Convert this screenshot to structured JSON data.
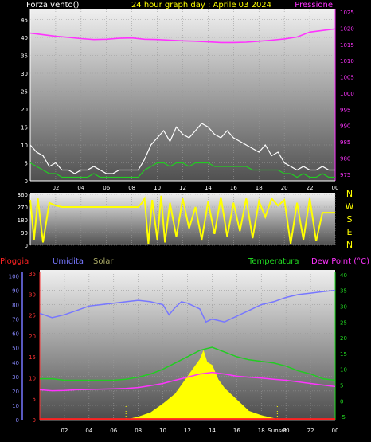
{
  "header": {
    "left": "Forza vento()",
    "center": "24 hour graph day : Aprile 03 2024",
    "right": "Pressione"
  },
  "legend2": {
    "pioggia": "Pioggia",
    "umidita": "Umidita",
    "solar": "Solar",
    "temperatura": "Temperatura",
    "dewpoint": "Dew Point (°C)"
  },
  "wind_dir_letters": [
    "N",
    "W",
    "S",
    "E",
    "N"
  ],
  "sunset_label": "Sunset",
  "colors": {
    "wind_avg": "#22cc22",
    "wind_gust": "#ffffff",
    "pressure": "#ff33ff",
    "direction": "#ffff00",
    "rain": "#ff2222",
    "humidity": "#7777ff",
    "solar": "#ffff00",
    "temperature": "#22cc22",
    "dewpoint": "#ff33ff"
  },
  "chart_data": [
    {
      "type": "line",
      "name": "wind-pressure",
      "x_ticks": [
        "02",
        "04",
        "06",
        "08",
        "10",
        "12",
        "14",
        "16",
        "18",
        "20",
        "22",
        "00"
      ],
      "y_left_ticks": [
        0,
        5,
        10,
        15,
        20,
        25,
        30,
        35,
        40,
        45
      ],
      "y_right_ticks": [
        975,
        980,
        985,
        990,
        995,
        1000,
        1005,
        1010,
        1015,
        1020,
        1025
      ],
      "ylim_left": [
        0,
        48
      ],
      "ylim_right": [
        973,
        1026
      ],
      "series": [
        {
          "key": "pressure",
          "axis": "right",
          "x": [
            0,
            1,
            2,
            3,
            4,
            5,
            6,
            7,
            8,
            9,
            10,
            11,
            12,
            13,
            14,
            15,
            16,
            17,
            18,
            19,
            20,
            21,
            22,
            23,
            24
          ],
          "values": [
            1018.5,
            1018,
            1017.5,
            1017.2,
            1016.8,
            1016.5,
            1016.6,
            1016.9,
            1017,
            1016.6,
            1016.5,
            1016.3,
            1016.1,
            1016,
            1015.8,
            1015.6,
            1015.6,
            1015.7,
            1016,
            1016.3,
            1016.7,
            1017.3,
            1018.8,
            1019.3,
            1019.8
          ]
        },
        {
          "key": "wind_gust",
          "axis": "left",
          "x": [
            0,
            0.5,
            1,
            1.5,
            2,
            2.5,
            3,
            3.5,
            4,
            4.5,
            5,
            5.5,
            6,
            6.5,
            7,
            7.5,
            8,
            8.5,
            9,
            9.5,
            10,
            10.5,
            11,
            11.5,
            12,
            12.5,
            13,
            13.5,
            14,
            14.5,
            15,
            15.5,
            16,
            16.5,
            17,
            17.5,
            18,
            18.5,
            19,
            19.5,
            20,
            20.5,
            21,
            21.5,
            22,
            22.5,
            23,
            23.5,
            24
          ],
          "values": [
            10,
            8,
            7,
            4,
            5,
            3,
            3,
            2,
            3,
            3,
            4,
            3,
            2,
            2,
            3,
            3,
            3,
            3,
            6,
            10,
            12,
            14,
            11,
            15,
            13,
            12,
            14,
            16,
            15,
            13,
            12,
            14,
            12,
            11,
            10,
            9,
            8,
            10,
            7,
            8,
            5,
            4,
            3,
            4,
            3,
            3,
            4,
            3,
            3
          ]
        },
        {
          "key": "wind_avg",
          "axis": "left",
          "x": [
            0,
            0.5,
            1,
            1.5,
            2,
            2.5,
            3,
            3.5,
            4,
            4.5,
            5,
            5.5,
            6,
            6.5,
            7,
            7.5,
            8,
            8.5,
            9,
            9.5,
            10,
            10.5,
            11,
            11.5,
            12,
            12.5,
            13,
            13.5,
            14,
            14.5,
            15,
            15.5,
            16,
            16.5,
            17,
            17.5,
            18,
            18.5,
            19,
            19.5,
            20,
            20.5,
            21,
            21.5,
            22,
            22.5,
            23,
            23.5,
            24
          ],
          "values": [
            5,
            4,
            3,
            2,
            2,
            1,
            1,
            1,
            1,
            1,
            2,
            1,
            1,
            1,
            1,
            1,
            1,
            1,
            3,
            4,
            5,
            5,
            4,
            5,
            5,
            4,
            5,
            5,
            5,
            4,
            4,
            4,
            4,
            4,
            4,
            3,
            3,
            3,
            3,
            3,
            2,
            2,
            1,
            2,
            1,
            1,
            2,
            1,
            1
          ]
        }
      ]
    },
    {
      "type": "line",
      "name": "wind-direction",
      "y_ticks": [
        0,
        90,
        180,
        270,
        360
      ],
      "ylim": [
        0,
        360
      ],
      "series": [
        {
          "key": "direction",
          "x": [
            0,
            0.3,
            0.6,
            1,
            1.5,
            2,
            2.5,
            3,
            3.5,
            4,
            4.5,
            5,
            5.5,
            6,
            6.5,
            7,
            7.5,
            8,
            8.5,
            8.8,
            9,
            9.3,
            9.6,
            10,
            10.3,
            10.6,
            11,
            11.5,
            12,
            12.5,
            13,
            13.5,
            14,
            14.5,
            15,
            15.5,
            16,
            16.5,
            17,
            17.5,
            18,
            18.5,
            19,
            19.5,
            20,
            20.5,
            21,
            21.5,
            22,
            22.5,
            23,
            23.5,
            24
          ],
          "values": [
            320,
            40,
            330,
            20,
            300,
            280,
            270,
            270,
            270,
            270,
            270,
            270,
            270,
            270,
            270,
            270,
            270,
            270,
            270,
            300,
            330,
            10,
            320,
            40,
            350,
            20,
            300,
            60,
            330,
            120,
            270,
            40,
            310,
            80,
            340,
            60,
            300,
            100,
            330,
            50,
            310,
            200,
            330,
            280,
            320,
            10,
            300,
            40,
            330,
            30,
            230,
            230,
            230
          ]
        }
      ]
    },
    {
      "type": "line",
      "name": "rain-humidity-solar-temp-dew",
      "x_ticks": [
        "02",
        "04",
        "06",
        "08",
        "10",
        "12",
        "14",
        "16",
        "18",
        "20",
        "22",
        "00"
      ],
      "y_left_ticks": [
        0,
        10,
        20,
        30,
        40,
        50,
        60,
        70,
        80,
        90,
        100
      ],
      "y_rain_ticks": [
        0,
        5,
        10,
        15,
        20,
        25,
        30,
        35
      ],
      "y_right_ticks": [
        -5,
        0,
        5,
        10,
        15,
        20,
        25,
        30,
        35,
        40
      ],
      "ylim_left": [
        0,
        103
      ],
      "ylim_right": [
        -6,
        41
      ],
      "series": [
        {
          "key": "humidity",
          "axis": "left",
          "x": [
            0,
            1,
            2,
            3,
            4,
            5,
            6,
            7,
            8,
            9,
            10,
            10.5,
            11,
            11.5,
            12,
            13,
            13.5,
            14,
            15,
            16,
            17,
            18,
            19,
            20,
            21,
            22,
            23,
            24
          ],
          "values": [
            74,
            71,
            73,
            76,
            79,
            80,
            81,
            82,
            83,
            82,
            80,
            73,
            78,
            82,
            81,
            77,
            68,
            70,
            68,
            72,
            76,
            80,
            82,
            85,
            87,
            88,
            89,
            90
          ]
        },
        {
          "key": "temperature",
          "axis": "right",
          "x": [
            0,
            1,
            2,
            3,
            4,
            5,
            6,
            7,
            8,
            9,
            10,
            11,
            12,
            13,
            14,
            15,
            16,
            17,
            18,
            19,
            20,
            21,
            22,
            23,
            24
          ],
          "values": [
            7,
            7,
            6.5,
            6.5,
            6.5,
            6.5,
            6.5,
            6.8,
            7.5,
            8.5,
            10,
            12,
            14,
            16,
            17,
            15.5,
            14,
            13,
            12.5,
            12,
            11,
            9.5,
            8.5,
            7,
            6.5
          ]
        },
        {
          "key": "dewpoint",
          "axis": "right",
          "x": [
            0,
            1,
            2,
            3,
            4,
            5,
            6,
            7,
            8,
            9,
            10,
            11,
            12,
            13,
            14,
            15,
            16,
            17,
            18,
            19,
            20,
            21,
            22,
            23,
            24
          ],
          "values": [
            3.5,
            3.2,
            3.3,
            3.5,
            3.6,
            3.7,
            3.8,
            3.9,
            4.2,
            4.8,
            5.5,
            6.5,
            7.5,
            8.5,
            9,
            8.5,
            7.8,
            7.5,
            7.2,
            6.8,
            6.5,
            6,
            5.5,
            5,
            4.5
          ]
        },
        {
          "key": "solar",
          "axis": "left",
          "x": [
            7,
            8,
            9,
            10,
            11,
            11.5,
            12,
            12.5,
            13,
            13.3,
            13.6,
            14,
            14.5,
            15,
            16,
            17,
            18,
            19,
            19.5
          ],
          "values": [
            0,
            2,
            5,
            11,
            18,
            24,
            30,
            36,
            42,
            48,
            40,
            38,
            28,
            22,
            14,
            6,
            3,
            1,
            0
          ]
        },
        {
          "key": "rain",
          "axis": "left",
          "x": [
            0,
            24
          ],
          "values": [
            0.5,
            0.5
          ]
        }
      ]
    }
  ]
}
